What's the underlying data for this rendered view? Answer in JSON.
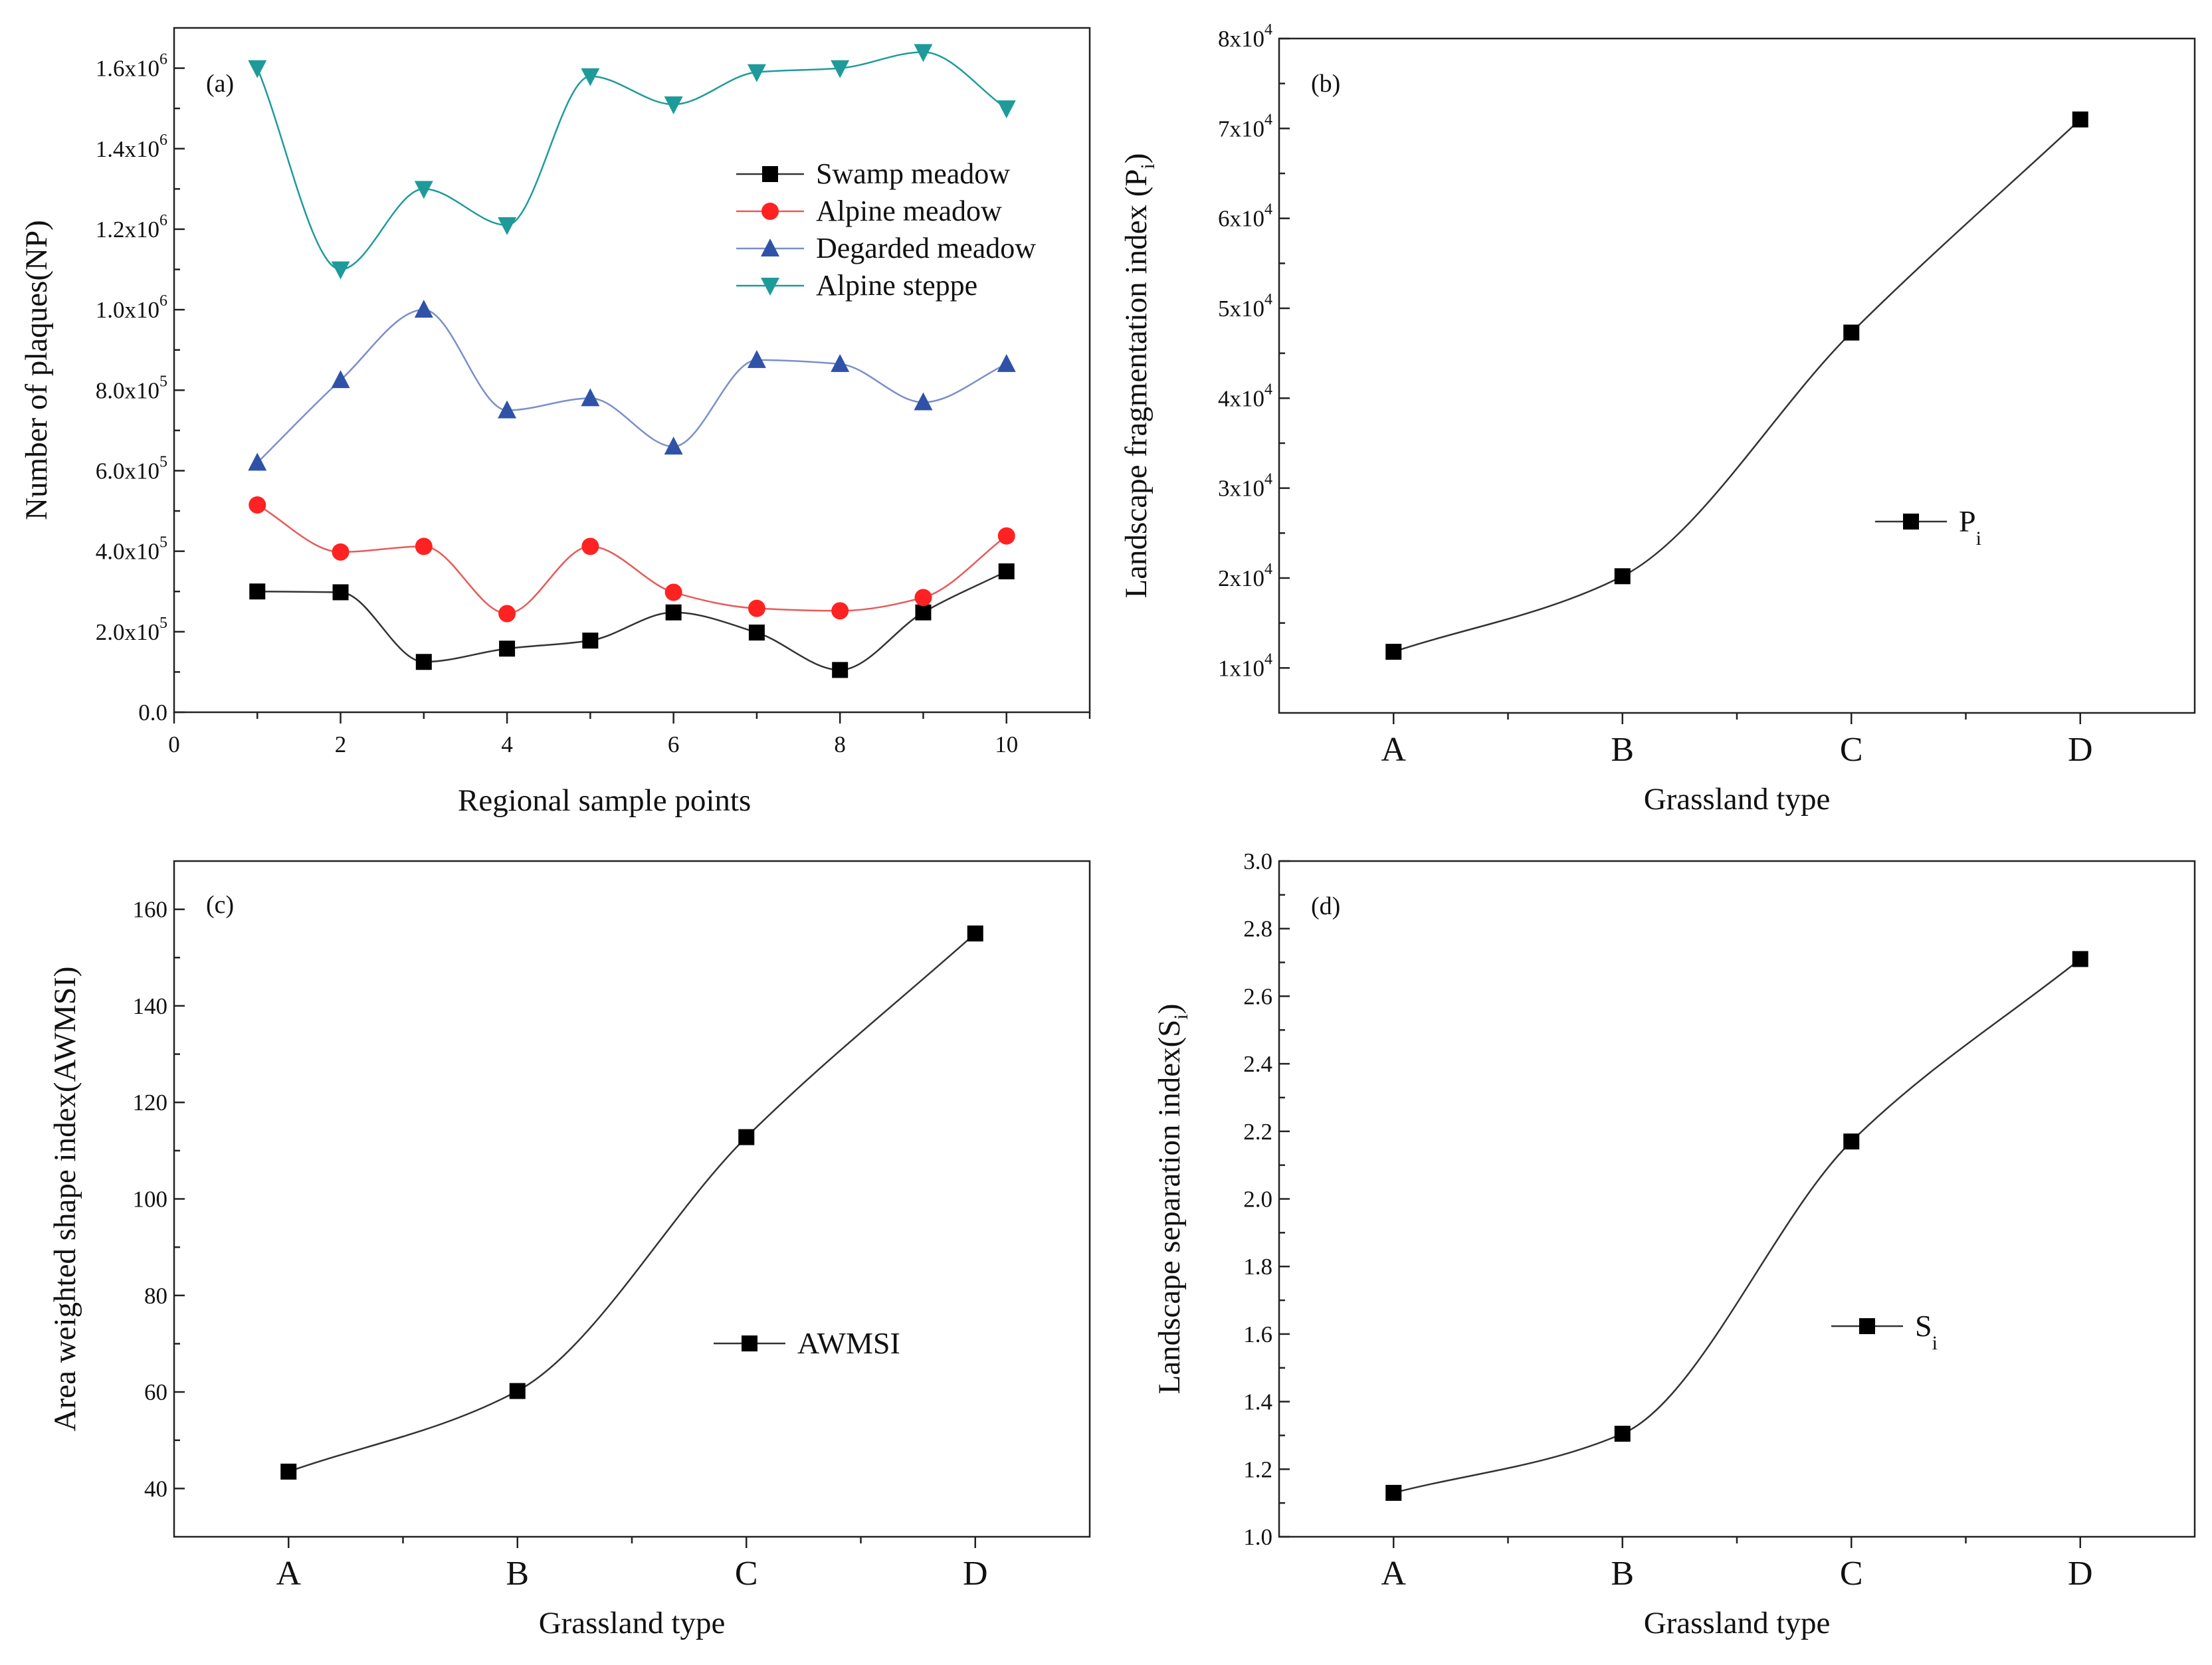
{
  "chart_data": [
    {
      "panel": "(a)",
      "type": "line",
      "xlabel": "Regional sample points",
      "ylabel": "Number of plaques(NP)",
      "xlim": [
        0,
        11
      ],
      "ylim": [
        0,
        1700000
      ],
      "x_ticks": [
        0,
        2,
        4,
        6,
        8,
        10
      ],
      "y_ticks": [
        {
          "value": 0,
          "mant": "0.0",
          "exp": ""
        },
        {
          "value": 200000,
          "mant": "2.0x10",
          "exp": "5"
        },
        {
          "value": 400000,
          "mant": "4.0x10",
          "exp": "5"
        },
        {
          "value": 600000,
          "mant": "6.0x10",
          "exp": "5"
        },
        {
          "value": 800000,
          "mant": "8.0x10",
          "exp": "5"
        },
        {
          "value": 1000000,
          "mant": "1.0x10",
          "exp": "6"
        },
        {
          "value": 1200000,
          "mant": "1.2x10",
          "exp": "6"
        },
        {
          "value": 1400000,
          "mant": "1.4x10",
          "exp": "6"
        },
        {
          "value": 1600000,
          "mant": "1.6x10",
          "exp": "6"
        }
      ],
      "x": [
        1,
        2,
        3,
        4,
        5,
        6,
        7,
        8,
        9,
        10
      ],
      "series": [
        {
          "name": "Swamp meadow",
          "marker": "square",
          "color": "#000000",
          "line_color": "#333333",
          "values": [
            300000,
            298000,
            125000,
            158000,
            178000,
            248000,
            198000,
            105000,
            248000,
            350000
          ]
        },
        {
          "name": "Alpine meadow",
          "marker": "circle",
          "color": "#ff2222",
          "line_color": "#e85a5a",
          "values": [
            515000,
            398000,
            412000,
            245000,
            412000,
            298000,
            258000,
            252000,
            285000,
            438000
          ]
        },
        {
          "name": "Degarded meadow",
          "marker": "triangle-up",
          "color": "#2f52a8",
          "line_color": "#7b8fc8",
          "values": [
            620000,
            825000,
            1000000,
            750000,
            780000,
            660000,
            875000,
            865000,
            770000,
            865000
          ]
        },
        {
          "name": "Alpine steppe",
          "marker": "triangle-down",
          "color": "#1f9a9a",
          "line_color": "#1f9a9a",
          "values": [
            1600000,
            1100000,
            1300000,
            1210000,
            1580000,
            1510000,
            1590000,
            1600000,
            1640000,
            1500000
          ]
        }
      ]
    },
    {
      "panel": "(b)",
      "type": "line",
      "xlabel": "Grassland type",
      "ylabel": "Landscape fragmentation index (P",
      "ylabel_sub": "i",
      "ylabel_tail": ")",
      "categories": [
        "A",
        "B",
        "C",
        "D"
      ],
      "ylim": [
        5000,
        80000
      ],
      "y_ticks": [
        {
          "value": 10000,
          "mant": "1x10",
          "exp": "4"
        },
        {
          "value": 20000,
          "mant": "2x10",
          "exp": "4"
        },
        {
          "value": 30000,
          "mant": "3x10",
          "exp": "4"
        },
        {
          "value": 40000,
          "mant": "4x10",
          "exp": "4"
        },
        {
          "value": 50000,
          "mant": "5x10",
          "exp": "4"
        },
        {
          "value": 60000,
          "mant": "6x10",
          "exp": "4"
        },
        {
          "value": 70000,
          "mant": "7x10",
          "exp": "4"
        },
        {
          "value": 80000,
          "mant": "8x10",
          "exp": "4"
        }
      ],
      "series": [
        {
          "name": "P",
          "name_sub": "i",
          "values": [
            11800,
            20200,
            47300,
            71000
          ]
        }
      ]
    },
    {
      "panel": "(c)",
      "type": "line",
      "xlabel": "Grassland type",
      "ylabel": "Area weighted shape index(AWMSI)",
      "categories": [
        "A",
        "B",
        "C",
        "D"
      ],
      "ylim": [
        30,
        170
      ],
      "y_ticks": [
        {
          "value": 40,
          "mant": "40",
          "exp": ""
        },
        {
          "value": 60,
          "mant": "60",
          "exp": ""
        },
        {
          "value": 80,
          "mant": "80",
          "exp": ""
        },
        {
          "value": 100,
          "mant": "100",
          "exp": ""
        },
        {
          "value": 120,
          "mant": "120",
          "exp": ""
        },
        {
          "value": 140,
          "mant": "140",
          "exp": ""
        },
        {
          "value": 160,
          "mant": "160",
          "exp": ""
        }
      ],
      "series": [
        {
          "name": "AWMSI",
          "values": [
            43.5,
            60.2,
            112.8,
            155
          ]
        }
      ]
    },
    {
      "panel": "(d)",
      "type": "line",
      "xlabel": "Grassland type",
      "ylabel": "Landscape separation index(S",
      "ylabel_sub": "i",
      "ylabel_tail": ")",
      "categories": [
        "A",
        "B",
        "C",
        "D"
      ],
      "ylim": [
        1.0,
        3.0
      ],
      "y_ticks": [
        {
          "value": 1.0,
          "mant": "1.0",
          "exp": ""
        },
        {
          "value": 1.2,
          "mant": "1.2",
          "exp": ""
        },
        {
          "value": 1.4,
          "mant": "1.4",
          "exp": ""
        },
        {
          "value": 1.6,
          "mant": "1.6",
          "exp": ""
        },
        {
          "value": 1.8,
          "mant": "1.8",
          "exp": ""
        },
        {
          "value": 2.0,
          "mant": "2.0",
          "exp": ""
        },
        {
          "value": 2.2,
          "mant": "2.2",
          "exp": ""
        },
        {
          "value": 2.4,
          "mant": "2.4",
          "exp": ""
        },
        {
          "value": 2.6,
          "mant": "2.6",
          "exp": ""
        },
        {
          "value": 2.8,
          "mant": "2.8",
          "exp": ""
        },
        {
          "value": 3.0,
          "mant": "3.0",
          "exp": ""
        }
      ],
      "series": [
        {
          "name": "S",
          "name_sub": "i",
          "values": [
            1.13,
            1.305,
            2.17,
            2.71
          ]
        }
      ]
    }
  ]
}
